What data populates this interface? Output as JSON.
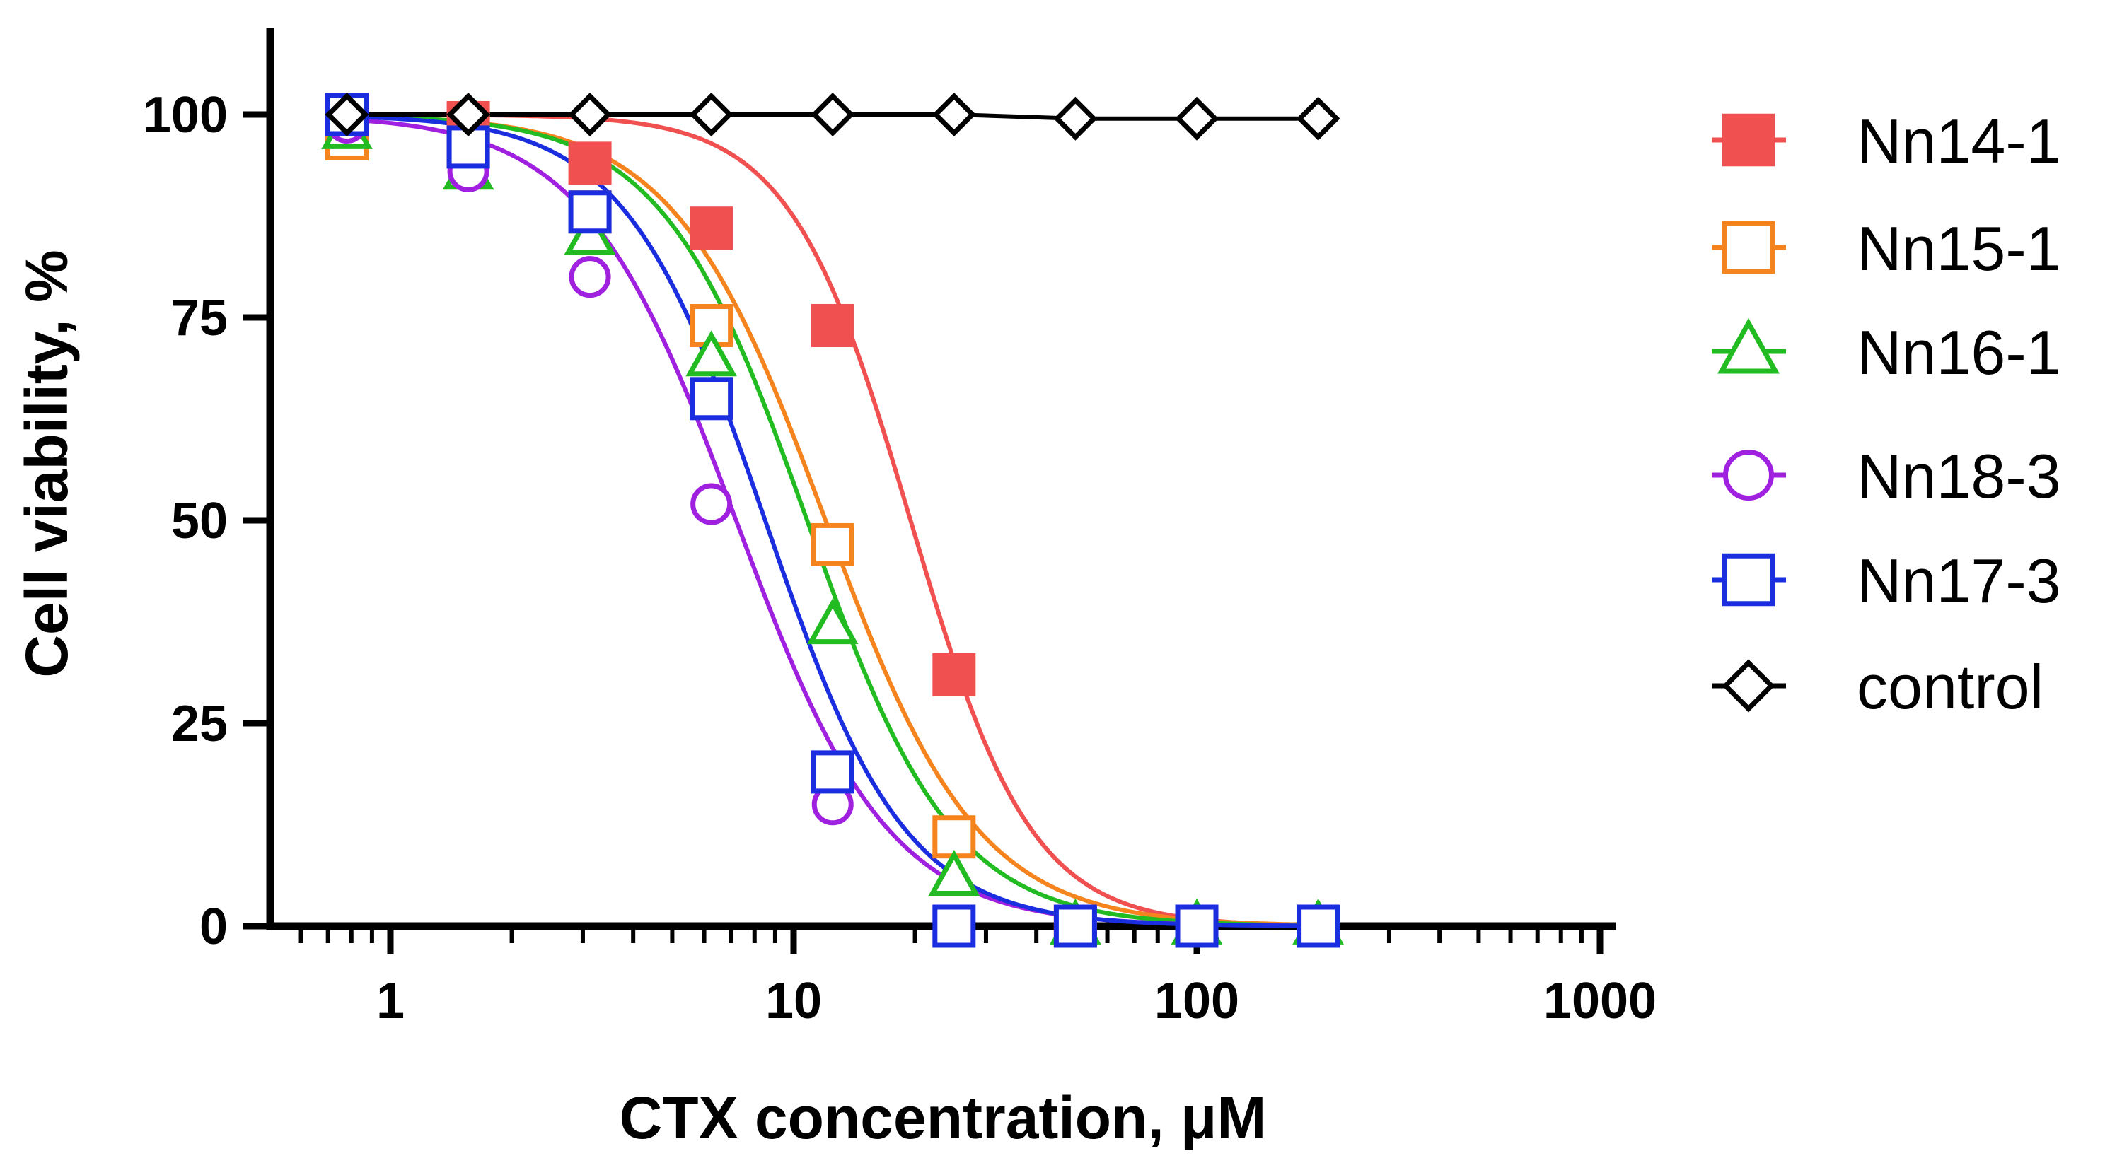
{
  "chart_data": {
    "type": "scatter",
    "title": "",
    "xlabel": "CTX concentration, μM",
    "ylabel": "Cell viability, %",
    "xscale": "log",
    "xlim": [
      0.5,
      1000
    ],
    "ylim": [
      0,
      110
    ],
    "xticks": [
      1,
      10,
      100,
      1000
    ],
    "xtick_labels": [
      "1",
      "10",
      "100",
      "1000"
    ],
    "yticks": [
      0,
      25,
      50,
      75,
      100
    ],
    "ytick_labels": [
      "0",
      "25",
      "50",
      "75",
      "100"
    ],
    "legend_position": "right",
    "x": [
      0.78,
      1.56,
      3.125,
      6.25,
      12.5,
      25,
      50,
      100,
      200
    ],
    "series": [
      {
        "name": "Nn14-1",
        "color": "#f0504f",
        "marker": "square-filled",
        "values": [
          99,
          99,
          94,
          86,
          74,
          31,
          0,
          0,
          0
        ],
        "curve": {
          "ic50": 19.5,
          "hill": 2.9
        }
      },
      {
        "name": "Nn15-1",
        "color": "#f5841f",
        "marker": "square-open",
        "values": [
          97,
          96,
          88,
          74,
          47,
          11,
          0,
          0,
          0
        ],
        "curve": {
          "ic50": 12.0,
          "hill": 2.3
        }
      },
      {
        "name": "Nn16-1",
        "color": "#22bb22",
        "marker": "triangle-open",
        "values": [
          98,
          93,
          85,
          70,
          37,
          6,
          0,
          0,
          0
        ],
        "curve": {
          "ic50": 10.8,
          "hill": 2.4
        }
      },
      {
        "name": "Nn18-3",
        "color": "#a020e0",
        "marker": "circle-open",
        "values": [
          99,
          93,
          80,
          52,
          15,
          0,
          0,
          0,
          0
        ],
        "curve": {
          "ic50": 7.2,
          "hill": 2.3
        }
      },
      {
        "name": "Nn17-3",
        "color": "#1a2ee0",
        "marker": "square-open",
        "values": [
          100,
          96,
          88,
          65,
          19,
          0,
          0,
          0,
          0
        ],
        "curve": {
          "ic50": 8.5,
          "hill": 2.5
        }
      },
      {
        "name": "control",
        "color": "#000000",
        "marker": "diamond-open",
        "values": [
          100,
          100,
          100,
          100,
          100,
          100,
          99.5,
          99.5,
          99.5
        ],
        "curve": null
      }
    ]
  }
}
